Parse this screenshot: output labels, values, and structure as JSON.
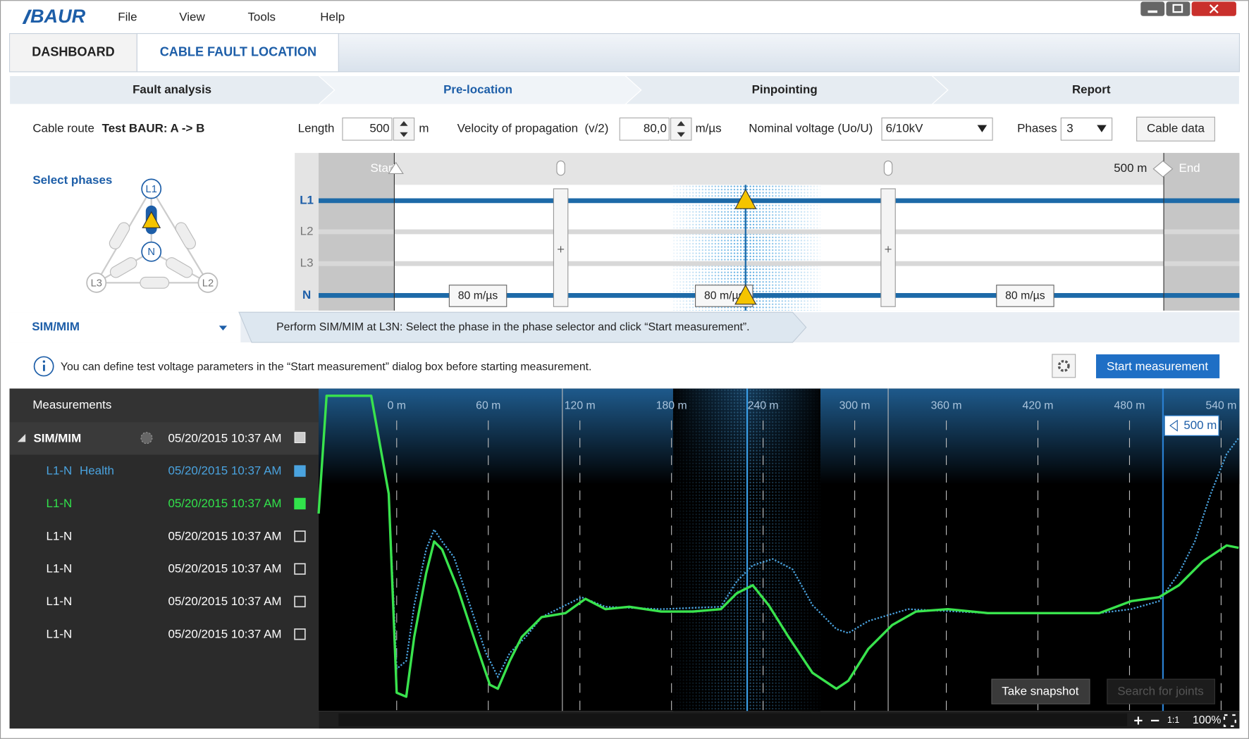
{
  "app": {
    "logo": "BAUR",
    "menu": [
      "File",
      "View",
      "Tools",
      "Help"
    ]
  },
  "tabs": [
    "DASHBOARD",
    "CABLE FAULT LOCATION"
  ],
  "steps": [
    "Fault analysis",
    "Pre-location",
    "Pinpointing",
    "Report"
  ],
  "cable_route": {
    "label": "Cable route",
    "value": "Test BAUR: A -> B"
  },
  "length": {
    "label": "Length",
    "value": "500",
    "unit": "m"
  },
  "velocity": {
    "label": "Velocity of propagation  (v/2)",
    "value": "80,0",
    "unit": "m/µs"
  },
  "nominal_voltage": {
    "label": "Nominal voltage (Uo/U)",
    "value": "6/10kV"
  },
  "phases": {
    "label": "Phases",
    "value": "3"
  },
  "cable_data_button": "Cable data",
  "phase_selector": {
    "title": "Select phases",
    "nodes": [
      "L1",
      "N",
      "L3",
      "L2"
    ]
  },
  "route_diagram": {
    "start": "Start",
    "end": "End",
    "end_distance": "500 m",
    "lines": [
      "L1",
      "L2",
      "L3",
      "N"
    ],
    "segment_labels": [
      "80 m/µs",
      "80 m/µs",
      "80 m/µs"
    ]
  },
  "method": {
    "name": "SIM/MIM",
    "instruction": "Perform SIM/MIM at L3N: Select the phase in the phase selector and click “Start measurement”."
  },
  "info": "You can define test voltage parameters in the “Start measurement” dialog box before starting measurement.",
  "start_button": "Start measurement",
  "measurements": {
    "title": "Measurements",
    "group": {
      "name": "SIM/MIM",
      "date": "05/20/2015 10:37 AM"
    },
    "rows": [
      {
        "name": "L1-N",
        "tag": "Health",
        "date": "05/20/2015 10:37 AM"
      },
      {
        "name": "L1-N",
        "date": "05/20/2015 10:37 AM"
      },
      {
        "name": "L1-N",
        "date": "05/20/2015 10:37 AM"
      },
      {
        "name": "L1-N",
        "date": "05/20/2015 10:37 AM"
      },
      {
        "name": "L1-N",
        "date": "05/20/2015 10:37 AM"
      },
      {
        "name": "L1-N",
        "date": "05/20/2015 10:37 AM"
      }
    ]
  },
  "trace_axis": {
    "ticks": [
      "0 m",
      "60 m",
      "120 m",
      "180 m",
      "240 m",
      "300 m",
      "360 m",
      "420 m",
      "480 m",
      "540 m"
    ],
    "cursor": "500 m"
  },
  "buttons": {
    "snapshot": "Take snapshot",
    "search": "Search for joints"
  },
  "zoom": {
    "one_to_one": "1:1",
    "percent": "100%"
  }
}
